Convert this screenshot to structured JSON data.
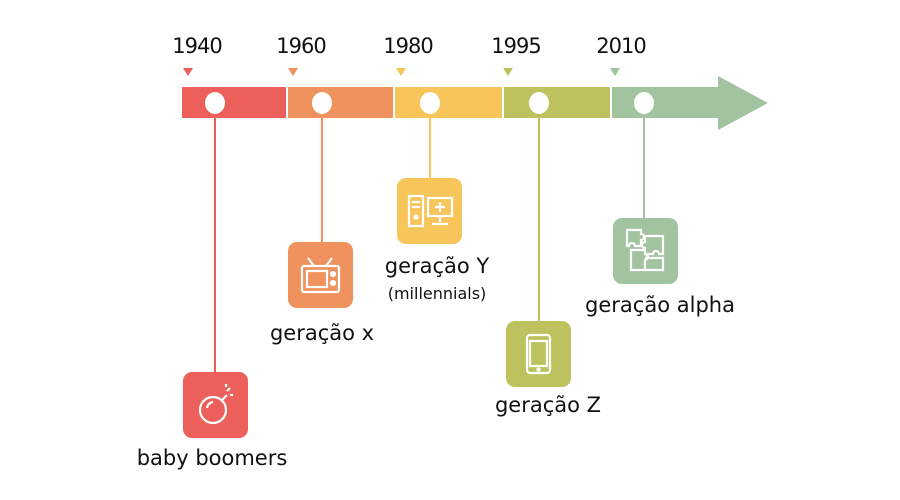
{
  "timeline": {
    "items": [
      {
        "year": "1940",
        "label": "baby boomers",
        "sublabel": "",
        "icon": "bomb-icon",
        "color": "#EC5F5A"
      },
      {
        "year": "1960",
        "label": "geração x",
        "sublabel": "",
        "icon": "tv-icon",
        "color": "#F0925E"
      },
      {
        "year": "1980",
        "label": "geração Y",
        "sublabel": "(millennials)",
        "icon": "computer-icon",
        "color": "#F7C55A"
      },
      {
        "year": "1995",
        "label": "geração Z",
        "sublabel": "",
        "icon": "smartphone-icon",
        "color": "#BDC25E"
      },
      {
        "year": "2010",
        "label": "geração alpha",
        "sublabel": "",
        "icon": "puzzle-icon",
        "color": "#A2C39F"
      }
    ]
  }
}
